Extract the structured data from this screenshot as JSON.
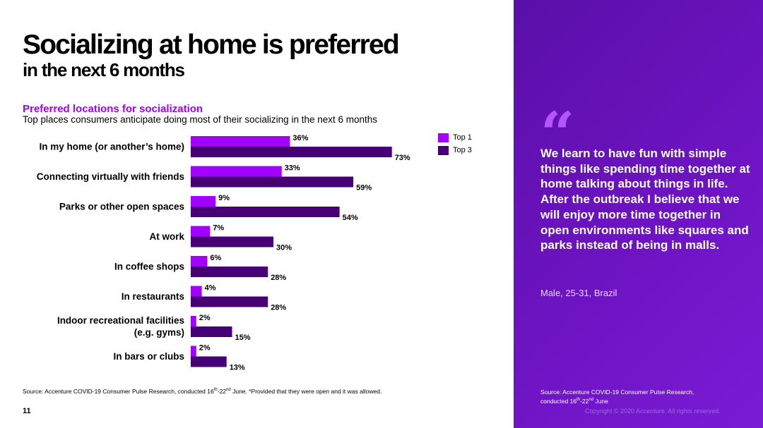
{
  "slide": {
    "title_line1": "Socializing at home is preferred",
    "title_line2": "in the next 6 months",
    "page_number": "11"
  },
  "chart_data": {
    "type": "bar",
    "orientation": "horizontal",
    "title": "Preferred locations for socialization",
    "subtitle": "Top places consumers anticipate doing most of their socializing in the next 6 months",
    "categories": [
      "In my home (or another’s home)",
      "Connecting virtually with friends",
      "Parks or other open spaces",
      "At work",
      "In coffee shops",
      "In restaurants",
      "Indoor recreational facilities (e.g. gyms)",
      "In bars or clubs"
    ],
    "category_lines": [
      [
        "In my home (or another’s home)"
      ],
      [
        "Connecting virtually with friends"
      ],
      [
        "Parks or other open spaces"
      ],
      [
        "At work"
      ],
      [
        "In coffee shops"
      ],
      [
        "In restaurants"
      ],
      [
        "Indoor recreational facilities",
        "(e.g. gyms)"
      ],
      [
        "In bars or clubs"
      ]
    ],
    "series": [
      {
        "name": "Top 1",
        "color": "#a100ff",
        "values": [
          36,
          33,
          9,
          7,
          6,
          4,
          2,
          2
        ],
        "labels": [
          "36%",
          "33%",
          "9%",
          "7%",
          "6%",
          "4%",
          "2%",
          "2%"
        ]
      },
      {
        "name": "Top 3",
        "color": "#460073",
        "values": [
          73,
          59,
          54,
          30,
          28,
          28,
          15,
          13
        ],
        "labels": [
          "73%",
          "59%",
          "54%",
          "30%",
          "28%",
          "28%",
          "15%",
          "13%"
        ]
      }
    ],
    "unit": "%",
    "xlim": [
      0,
      100
    ],
    "grid": false,
    "legend": "top-right"
  },
  "source_left": {
    "prefix": "Source: Accenture COVID-19 Consumer Pulse Research, conducted 16",
    "sup1": "th",
    "mid": "-22",
    "sup2": "nd",
    "suffix": " June. *Provided that they were open and it was allowed."
  },
  "quote": {
    "mark": "“",
    "text": "We learn to have fun with simple things like spending time together at home talking about things in life. After the outbreak I believe that we will enjoy more time together in open environments like squares and parks instead of being in malls.",
    "attribution": "Male, 25-31, Brazil"
  },
  "source_right": {
    "line1": "Source: Accenture COVID-19 Consumer Pulse Research,",
    "line2_prefix": "conducted 16",
    "sup1": "th",
    "mid": "-22",
    "sup2": "nd",
    "suffix": " June"
  },
  "copyright": "Copyright © 2020 Accenture. All rights reserved."
}
